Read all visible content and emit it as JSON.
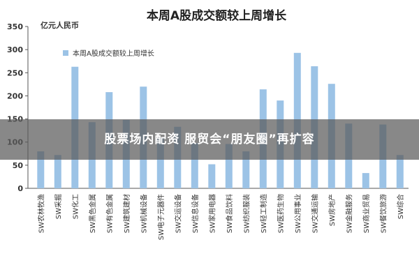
{
  "chart_data": {
    "type": "bar",
    "title": "本周A股成交额较上周增长",
    "ylabel": "亿元人民币",
    "ylim": [
      0,
      350
    ],
    "yticks": [
      0,
      50,
      100,
      150,
      200,
      250,
      300,
      350
    ],
    "legend": "top-left",
    "grid": false,
    "bar_color": "#9CC3E6",
    "series": [
      {
        "name": "本周A股成交额较上周增长",
        "values": [
          80,
          72,
          263,
          143,
          208,
          148,
          220,
          110,
          133,
          98,
          52,
          96,
          80,
          214,
          190,
          293,
          264,
          226,
          140,
          33,
          138,
          72
        ]
      }
    ],
    "categories": [
      "SW农林牧渔",
      "SW采掘",
      "SW化工",
      "SW黑色金属",
      "SW有色金属",
      "SW建筑建材",
      "SW机械设备",
      "SW电子元器件",
      "SW交运设备",
      "SW信息设备",
      "SW家用电器",
      "SW食品饮料",
      "SW纺织服装",
      "SW轻工制造",
      "SW医药生物",
      "SW公用事业",
      "SW交通运输",
      "SW房地产",
      "SW金融服务",
      "SW商业贸易",
      "SW餐饮旅游",
      "SW综合"
    ]
  },
  "overlay": {
    "caption": "股票场内配资 服贸会“朋友圈”再扩容"
  }
}
